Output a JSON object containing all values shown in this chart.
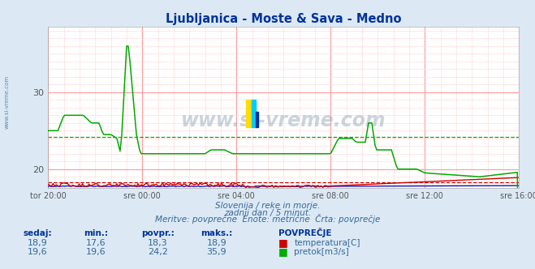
{
  "title": "Ljubljanica - Moste & Sava - Medno",
  "title_color": "#003399",
  "bg_color": "#dce9f5",
  "plot_bg_color": "#ffffff",
  "grid_color_major": "#ff9999",
  "grid_color_minor": "#ffdddd",
  "x_tick_labels": [
    "tor 20:00",
    "sre 00:00",
    "sre 04:00",
    "sre 08:00",
    "sre 12:00",
    "sre 16:00"
  ],
  "x_tick_positions": [
    0,
    48,
    96,
    144,
    192,
    240
  ],
  "ylim": [
    17.5,
    38.5
  ],
  "y_ticks": [
    20,
    30
  ],
  "temp_avg": 18.3,
  "flow_avg": 24.2,
  "temp_color": "#cc0000",
  "flow_color": "#00aa00",
  "height_color": "#0000bb",
  "watermark_text": "www.si-vreme.com",
  "watermark_color": "#99aabb",
  "footer_line1": "Slovenija / reke in morje.",
  "footer_line2": "zadnji dan / 5 minut.",
  "footer_line3": "Meritve: povprečne  Enote: metrične  Črta: povprečje",
  "footer_color": "#336699",
  "table_color": "#336699",
  "table_header_color": "#003399",
  "side_label": "www.si-vreme.com",
  "side_label_color": "#336699",
  "n_points": 289,
  "xlim": [
    0,
    240
  ]
}
